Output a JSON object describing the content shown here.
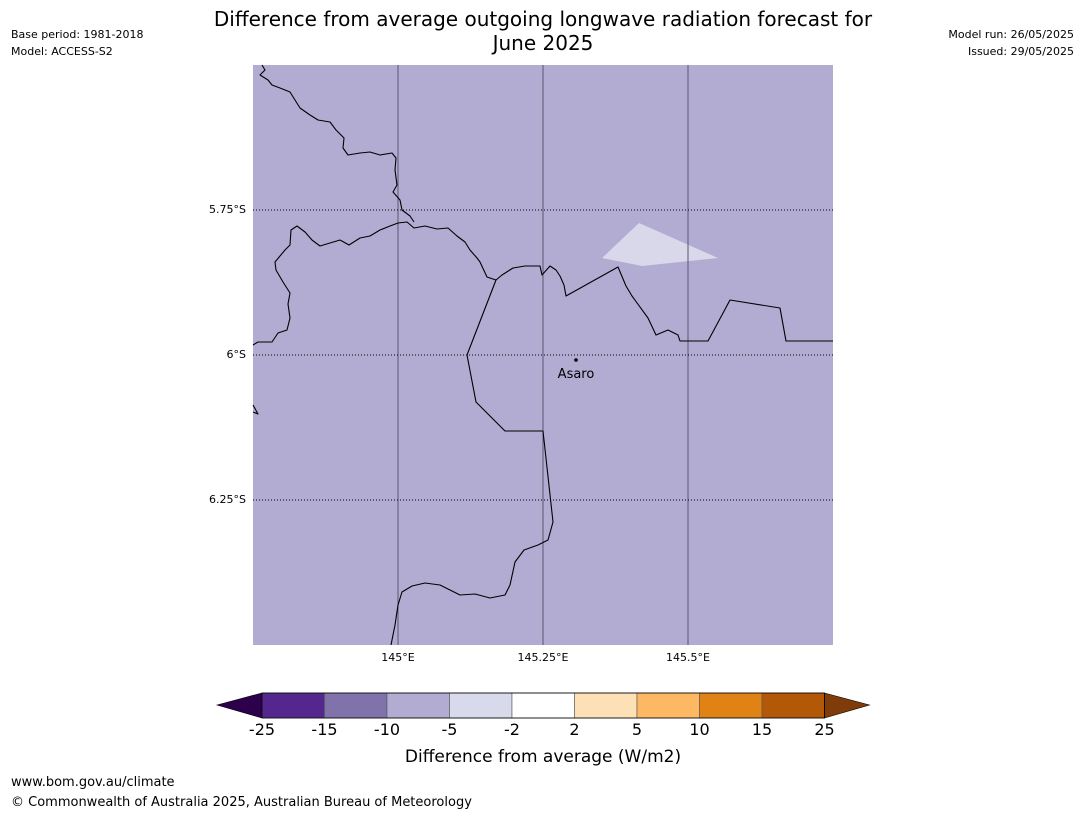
{
  "header": {
    "title_line1": "Difference from average outgoing longwave radiation forecast for",
    "title_line2": "June 2025",
    "base_period": "Base period: 1981-2018",
    "model": "Model: ACCESS-S2",
    "model_run": "Model run: 26/05/2025",
    "issued": "Issued: 29/05/2025"
  },
  "map": {
    "background_color": "#b2acd2",
    "anomaly_patch_color": "#d8d8ea",
    "lat_labels": [
      "5.75°S",
      "6°S",
      "6.25°S"
    ],
    "lon_labels": [
      "145°E",
      "145.25°E",
      "145.5°E"
    ],
    "place": {
      "name": "Asaro"
    }
  },
  "legend": {
    "title": "Difference from average (W/m2)",
    "ticks": [
      "-25",
      "-15",
      "-10",
      "-5",
      "-2",
      "2",
      "5",
      "10",
      "15",
      "25"
    ],
    "bins": [
      {
        "from": "-25",
        "to": "-15",
        "color": "#54278f"
      },
      {
        "from": "-15",
        "to": "-10",
        "color": "#8073ac"
      },
      {
        "from": "-10",
        "to": "-5",
        "color": "#b2abd2"
      },
      {
        "from": "-5",
        "to": "-2",
        "color": "#d8daeb"
      },
      {
        "from": "-2",
        "to": "2",
        "color": "#ffffff"
      },
      {
        "from": "2",
        "to": "5",
        "color": "#fee0b6"
      },
      {
        "from": "5",
        "to": "10",
        "color": "#fdb863"
      },
      {
        "from": "10",
        "to": "15",
        "color": "#e08214"
      },
      {
        "from": "15",
        "to": "25",
        "color": "#b35806"
      }
    ],
    "below_color": "#2d004b",
    "above_color": "#7f3b08"
  },
  "footer": {
    "url": "www.bom.gov.au/climate",
    "copyright": "© Commonwealth of Australia 2025, Australian Bureau of Meteorology"
  }
}
